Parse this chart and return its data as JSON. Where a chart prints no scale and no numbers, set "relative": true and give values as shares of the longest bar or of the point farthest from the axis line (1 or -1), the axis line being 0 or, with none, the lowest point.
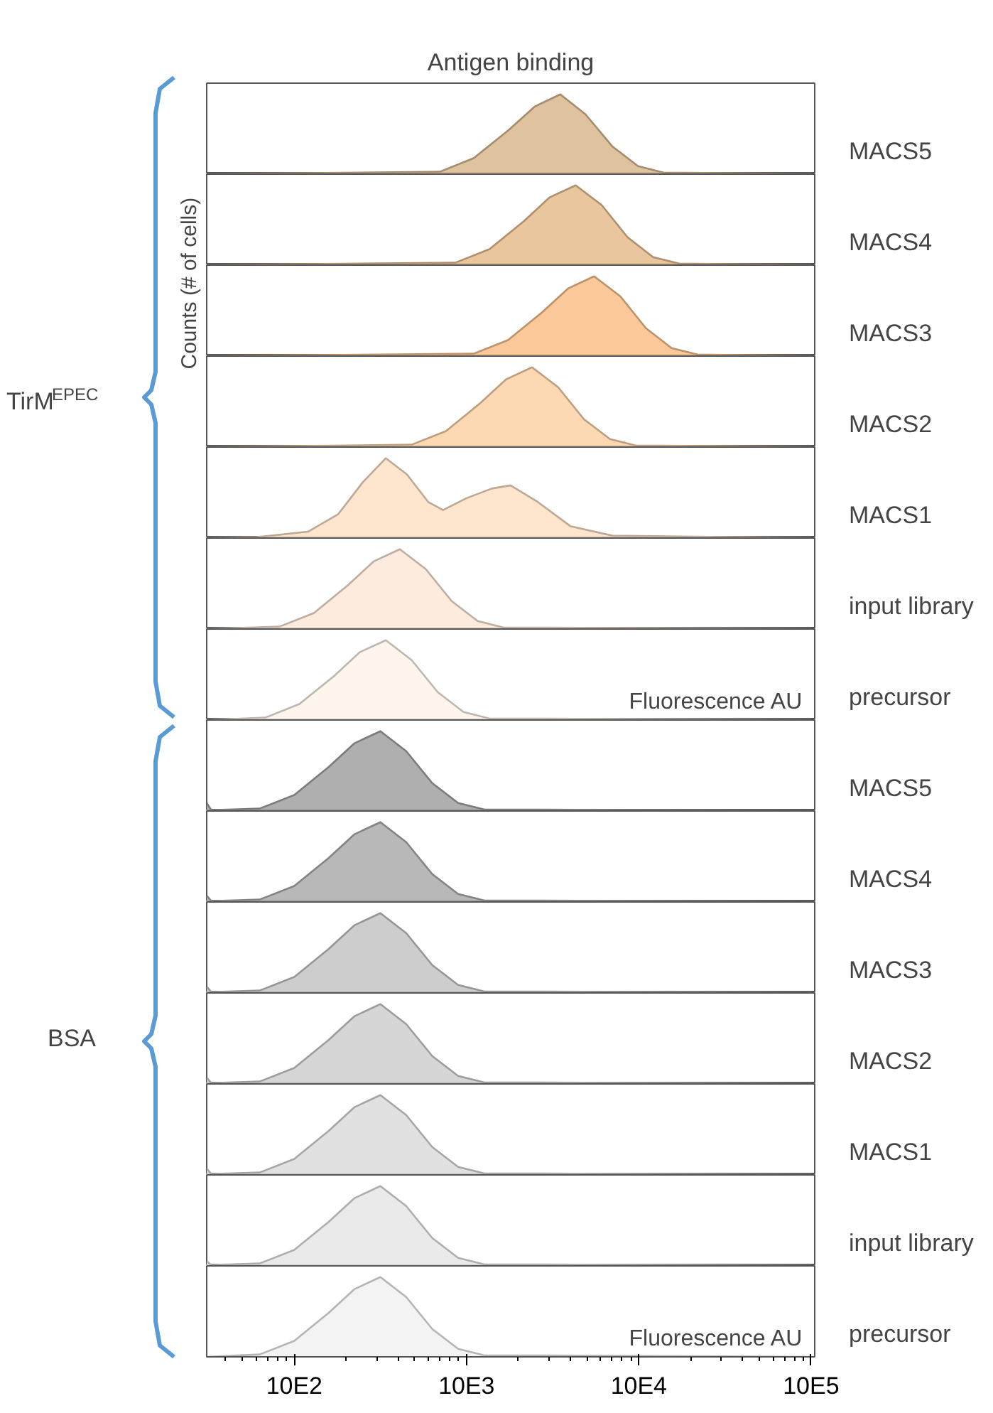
{
  "chart_data": [
    {
      "type": "area",
      "title": "Antigen binding",
      "ylabel": "MACS5",
      "annotations": [
        "TirM$^{EPEC}$",
        "Counts (# of cells)"
      ],
      "x": [
        310,
        7000,
        11000,
        17500,
        25000,
        35000,
        49000,
        70000,
        99000,
        139000,
        1000000
      ],
      "values": [
        0,
        0.03,
        0.2,
        0.55,
        0.85,
        1,
        0.75,
        0.35,
        0.1,
        0.02,
        0
      ],
      "color": "#dcbb94",
      "relative": true,
      "log": "x",
      "xlim": [
        310,
        1050000
      ],
      "tick_labels": false
    },
    {
      "type": "area",
      "ylabel": "MACS4",
      "x": [
        310,
        8600,
        13600,
        21500,
        30400,
        43000,
        61000,
        86000,
        121000,
        171000,
        1000000
      ],
      "values": [
        0,
        0.03,
        0.2,
        0.55,
        0.85,
        1,
        0.75,
        0.35,
        0.1,
        0.02,
        0
      ],
      "color": "#e8c093",
      "relative": true,
      "log": "x",
      "xlim": [
        310,
        1050000
      ],
      "tick_labels": false
    },
    {
      "type": "area",
      "ylabel": "MACS3",
      "x": [
        310,
        11000,
        17400,
        27500,
        39000,
        55000,
        78000,
        110000,
        155000,
        219000,
        1000000
      ],
      "values": [
        0,
        0.03,
        0.2,
        0.55,
        0.85,
        1,
        0.75,
        0.35,
        0.1,
        0.02,
        0
      ],
      "color": "#fbc38e",
      "relative": true,
      "log": "x",
      "xlim": [
        310,
        1050000
      ],
      "tick_labels": false
    },
    {
      "type": "area",
      "ylabel": "MACS2",
      "x": [
        310,
        4800,
        7600,
        12000,
        17000,
        24000,
        34000,
        48000,
        68000,
        96000,
        1000000
      ],
      "values": [
        0,
        0.03,
        0.2,
        0.55,
        0.85,
        1,
        0.75,
        0.35,
        0.1,
        0.02,
        0
      ],
      "color": "#fcd4ab",
      "relative": true,
      "log": "x",
      "xlim": [
        310,
        1050000
      ],
      "tick_labels": false
    },
    {
      "type": "area",
      "ylabel": "MACS1",
      "x": [
        310,
        600,
        1200,
        1800,
        2500,
        3400,
        4500,
        6000,
        7300,
        10000,
        14000,
        18000,
        26000,
        40000,
        70000,
        1000000
      ],
      "values": [
        0,
        0.01,
        0.08,
        0.3,
        0.7,
        1,
        0.8,
        0.45,
        0.35,
        0.5,
        0.62,
        0.66,
        0.45,
        0.15,
        0.03,
        0
      ],
      "color": "#fde2c9",
      "relative": true,
      "log": "x",
      "xlim": [
        310,
        1050000
      ],
      "tick_labels": false
    },
    {
      "type": "area",
      "ylabel": "input library",
      "x": [
        310,
        820,
        1300,
        2050,
        2900,
        4100,
        5800,
        8200,
        11600,
        16300,
        1000000
      ],
      "values": [
        0,
        0.03,
        0.2,
        0.55,
        0.85,
        1,
        0.75,
        0.35,
        0.1,
        0.02,
        0
      ],
      "color": "#fde9da",
      "relative": true,
      "log": "x",
      "xlim": [
        310,
        1050000
      ],
      "tick_labels": false
    },
    {
      "type": "area",
      "ylabel": "precursor",
      "annotations": [
        "Fluorescence AU"
      ],
      "x": [
        310,
        680,
        1070,
        1700,
        2400,
        3400,
        4800,
        6800,
        9600,
        13500,
        1000000
      ],
      "values": [
        0,
        0.03,
        0.2,
        0.55,
        0.85,
        1,
        0.75,
        0.35,
        0.1,
        0.02,
        0
      ],
      "color": "#fef5ea",
      "relative": true,
      "log": "x",
      "xlim": [
        310,
        1050000
      ],
      "tick_labels": false
    },
    {
      "type": "area",
      "ylabel": "MACS5",
      "annotations": [
        "BSA"
      ],
      "x": [
        310,
        330,
        630,
        1000,
        1580,
        2240,
        3160,
        4460,
        6320,
        8930,
        12600,
        1000000
      ],
      "values": [
        0.1,
        0.01,
        0.03,
        0.2,
        0.55,
        0.85,
        1,
        0.75,
        0.35,
        0.1,
        0.02,
        0
      ],
      "color": "#a6a6a6",
      "relative": true,
      "log": "x",
      "xlim": [
        310,
        1050000
      ],
      "tick_labels": false
    },
    {
      "type": "area",
      "ylabel": "MACS4",
      "x": [
        310,
        330,
        630,
        1000,
        1580,
        2240,
        3160,
        4460,
        6320,
        8930,
        12600,
        1000000
      ],
      "values": [
        0.08,
        0.01,
        0.03,
        0.2,
        0.55,
        0.85,
        1,
        0.75,
        0.35,
        0.1,
        0.02,
        0
      ],
      "color": "#b0b0b0",
      "relative": true,
      "log": "x",
      "xlim": [
        310,
        1050000
      ],
      "tick_labels": false
    },
    {
      "type": "area",
      "ylabel": "MACS3",
      "x": [
        310,
        330,
        630,
        1000,
        1580,
        2240,
        3160,
        4460,
        6320,
        8930,
        12600,
        1000000
      ],
      "values": [
        0.08,
        0.01,
        0.03,
        0.2,
        0.55,
        0.85,
        1,
        0.75,
        0.35,
        0.1,
        0.02,
        0
      ],
      "color": "#c8c8c8",
      "relative": true,
      "log": "x",
      "xlim": [
        310,
        1050000
      ],
      "tick_labels": false
    },
    {
      "type": "area",
      "ylabel": "MACS2",
      "x": [
        310,
        330,
        630,
        1000,
        1580,
        2240,
        3160,
        4460,
        6320,
        8930,
        12600,
        1000000
      ],
      "values": [
        0.08,
        0.01,
        0.03,
        0.2,
        0.55,
        0.85,
        1,
        0.75,
        0.35,
        0.1,
        0.02,
        0
      ],
      "color": "#d2d2d2",
      "relative": true,
      "log": "x",
      "xlim": [
        310,
        1050000
      ],
      "tick_labels": false
    },
    {
      "type": "area",
      "ylabel": "MACS1",
      "x": [
        310,
        330,
        630,
        1000,
        1580,
        2240,
        3160,
        4460,
        6320,
        8930,
        12600,
        1000000
      ],
      "values": [
        0.08,
        0.01,
        0.03,
        0.2,
        0.55,
        0.85,
        1,
        0.75,
        0.35,
        0.1,
        0.02,
        0
      ],
      "color": "#dedede",
      "relative": true,
      "log": "x",
      "xlim": [
        310,
        1050000
      ],
      "tick_labels": false
    },
    {
      "type": "area",
      "ylabel": "input library",
      "x": [
        310,
        330,
        630,
        1000,
        1580,
        2240,
        3160,
        4460,
        6320,
        8930,
        12600,
        1000000
      ],
      "values": [
        0.06,
        0.01,
        0.03,
        0.2,
        0.55,
        0.85,
        1,
        0.75,
        0.35,
        0.1,
        0.02,
        0
      ],
      "color": "#e8e8e8",
      "relative": true,
      "log": "x",
      "xlim": [
        310,
        1050000
      ],
      "tick_labels": false
    },
    {
      "type": "area",
      "ylabel": "precursor",
      "annotations": [
        "Fluorescence AU"
      ],
      "x": [
        310,
        630,
        1000,
        1580,
        2240,
        3160,
        4460,
        6320,
        8930,
        12600,
        1000000
      ],
      "values": [
        0,
        0.03,
        0.2,
        0.55,
        0.85,
        1,
        0.75,
        0.35,
        0.1,
        0.02,
        0
      ],
      "color": "#f2f2f2",
      "relative": true,
      "log": "x",
      "xlim": [
        310,
        1050000
      ],
      "xticks": [
        {
          "value": 1000,
          "label": "10E2"
        },
        {
          "value": 10000,
          "label": "10E3"
        },
        {
          "value": 100000,
          "label": "10E4"
        },
        {
          "value": 1000000,
          "label": "10E5"
        }
      ],
      "tick_labels": "x"
    }
  ]
}
